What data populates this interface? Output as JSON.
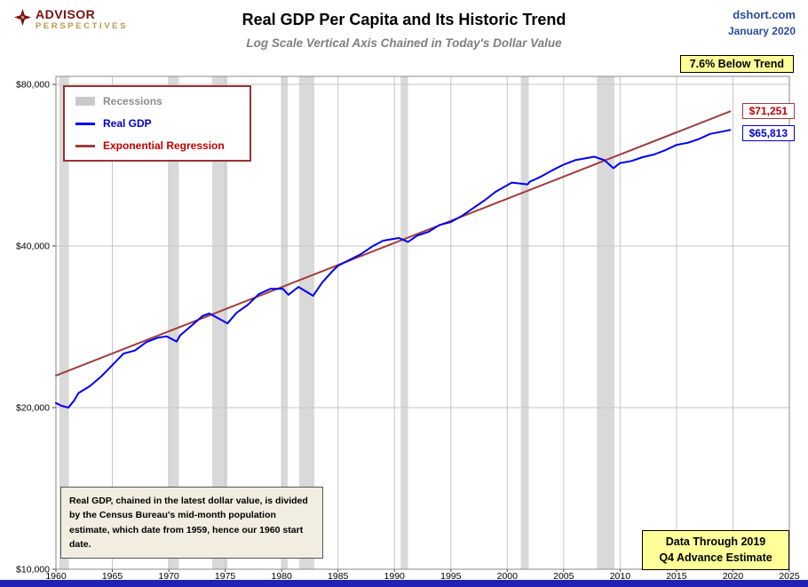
{
  "header": {
    "logo_line1": "ADVISOR",
    "logo_line2": "PERSPECTIVES",
    "source": "dshort.com",
    "date": "January 2020"
  },
  "note": "Real GDP, chained in the latest dollar value, is divided by the Census Bureau's mid-month population estimate, which date from 1959, hence our 1960 start date.",
  "colors": {
    "real_gdp_line": "#0000ee",
    "regression_line": "#a03c3c",
    "recession_band": "#d9d9d9",
    "gridline": "#c6c6c6",
    "plot_border": "#8a8a8a",
    "accent_yellow": "#ffff99",
    "footer_bar": "#2121b5",
    "source_blue": "#2b4d9e",
    "logo_red": "#7a1010",
    "logo_gold": "#b8994f"
  },
  "chart_data": {
    "type": "line",
    "title": "Real GDP Per Capita and Its Historic Trend",
    "subtitle": "Log Scale Vertical Axis Chained in Today's Dollar Value",
    "x_range": [
      1960,
      2025
    ],
    "x_ticks": [
      1960,
      1965,
      1970,
      1975,
      1980,
      1985,
      1990,
      1995,
      2000,
      2005,
      2010,
      2015,
      2020,
      2025
    ],
    "y_scale": "log",
    "y_ticks": [
      {
        "value": 10000,
        "label": "$10,000"
      },
      {
        "value": 20000,
        "label": "$20,000"
      },
      {
        "value": 40000,
        "label": "$40,000"
      },
      {
        "value": 80000,
        "label": "$80,000"
      }
    ],
    "legend": {
      "recessions": "Recessions",
      "real_gdp": "Real GDP",
      "regression": "Exponential Regression"
    },
    "annotations": {
      "below_trend": "7.6% Below Trend",
      "data_through_line1": "Data Through 2019",
      "data_through_line2": "Q4 Advance Estimate"
    },
    "recessions": [
      [
        1960.3,
        1961.15
      ],
      [
        1969.95,
        1970.9
      ],
      [
        1973.85,
        1975.2
      ],
      [
        1980.0,
        1980.55
      ],
      [
        1981.55,
        1982.9
      ],
      [
        1990.55,
        1991.2
      ],
      [
        2001.2,
        2001.9
      ],
      [
        2007.95,
        2009.5
      ]
    ],
    "series": [
      {
        "name": "Real GDP",
        "color": "#0000ee",
        "end_label": "$65,813",
        "points": [
          [
            1960,
            20400
          ],
          [
            1960.5,
            20150
          ],
          [
            1961.1,
            20000
          ],
          [
            1961.6,
            20600
          ],
          [
            1962,
            21290
          ],
          [
            1963,
            21920
          ],
          [
            1964,
            22840
          ],
          [
            1965,
            23990
          ],
          [
            1966,
            25220
          ],
          [
            1967,
            25550
          ],
          [
            1968,
            26480
          ],
          [
            1969,
            26980
          ],
          [
            1969.8,
            27150
          ],
          [
            1970.7,
            26550
          ],
          [
            1971,
            27250
          ],
          [
            1972,
            28400
          ],
          [
            1973,
            29640
          ],
          [
            1973.6,
            29950
          ],
          [
            1974.5,
            29250
          ],
          [
            1975.2,
            28700
          ],
          [
            1976,
            30030
          ],
          [
            1977,
            31080
          ],
          [
            1978,
            32570
          ],
          [
            1979,
            33280
          ],
          [
            1980.1,
            33300
          ],
          [
            1980.6,
            32450
          ],
          [
            1981.5,
            33560
          ],
          [
            1982.8,
            32300
          ],
          [
            1983.6,
            34200
          ],
          [
            1984.5,
            35900
          ],
          [
            1985,
            36760
          ],
          [
            1986,
            37670
          ],
          [
            1987,
            38600
          ],
          [
            1988,
            39880
          ],
          [
            1989,
            40930
          ],
          [
            1990.4,
            41400
          ],
          [
            1991.2,
            40700
          ],
          [
            1992,
            41810
          ],
          [
            1993,
            42480
          ],
          [
            1994,
            43780
          ],
          [
            1995,
            44340
          ],
          [
            1996,
            45550
          ],
          [
            1997,
            47090
          ],
          [
            1998,
            48660
          ],
          [
            1999,
            50520
          ],
          [
            2000.4,
            52500
          ],
          [
            2001.8,
            52100
          ],
          [
            2002,
            52710
          ],
          [
            2003,
            53880
          ],
          [
            2004,
            55360
          ],
          [
            2005,
            56690
          ],
          [
            2006,
            57780
          ],
          [
            2007.7,
            58650
          ],
          [
            2008.6,
            57800
          ],
          [
            2009.4,
            55850
          ],
          [
            2010,
            57080
          ],
          [
            2011,
            57600
          ],
          [
            2012,
            58530
          ],
          [
            2013,
            59210
          ],
          [
            2014,
            60300
          ],
          [
            2015,
            61700
          ],
          [
            2016,
            62270
          ],
          [
            2017,
            63300
          ],
          [
            2018,
            64720
          ],
          [
            2019,
            65300
          ],
          [
            2019.75,
            65813
          ]
        ]
      },
      {
        "name": "Exponential Regression",
        "color": "#a03c3c",
        "end_label": "$71,251",
        "points": [
          [
            1960,
            22950
          ],
          [
            2019.75,
            71251
          ]
        ]
      }
    ]
  }
}
